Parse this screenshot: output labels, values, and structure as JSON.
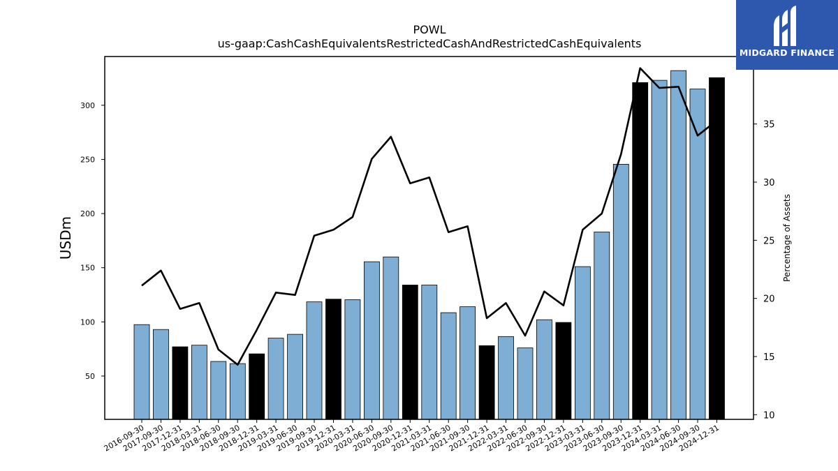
{
  "chart_data": {
    "type": "bar",
    "title": "POWL",
    "subtitle": "us-gaap:CashCashEquivalentsRestrictedCashAndRestrictedCashEquivalents",
    "xlabel": "",
    "ylabel": "USDm",
    "y2label": "Percentage of Assets",
    "ylim": [
      10,
      345
    ],
    "y2lim": [
      9.6,
      40.8
    ],
    "yticks": [
      50,
      100,
      150,
      200,
      250,
      300
    ],
    "y2ticks": [
      10,
      15,
      20,
      25,
      30,
      35,
      40
    ],
    "categories": [
      "2016-09-30",
      "2017-09-30",
      "2017-12-31",
      "2018-03-31",
      "2018-06-30",
      "2018-09-30",
      "2018-12-31",
      "2019-03-31",
      "2019-06-30",
      "2019-09-30",
      "2019-12-31",
      "2020-03-31",
      "2020-06-30",
      "2020-09-30",
      "2020-12-31",
      "2021-03-31",
      "2021-06-30",
      "2021-09-30",
      "2021-12-31",
      "2022-03-31",
      "2022-06-30",
      "2022-09-30",
      "2022-12-31",
      "2023-03-31",
      "2023-06-30",
      "2023-09-30",
      "2023-12-31",
      "2024-03-31",
      "2024-06-30",
      "2024-09-30",
      "2024-12-31"
    ],
    "series": [
      {
        "kind": "bar",
        "values": [
          97.5,
          93,
          77,
          78.5,
          63.5,
          61.5,
          70.5,
          85,
          88.5,
          118.5,
          121,
          120.5,
          155.5,
          160,
          134,
          134,
          108.5,
          114,
          78,
          86.5,
          76,
          102,
          99.5,
          151,
          183,
          245.5,
          321,
          323,
          332,
          315,
          325.5
        ],
        "highlight": [
          false,
          false,
          true,
          false,
          false,
          false,
          true,
          false,
          false,
          false,
          true,
          false,
          false,
          false,
          true,
          false,
          false,
          false,
          true,
          false,
          false,
          false,
          true,
          false,
          false,
          false,
          true,
          false,
          false,
          false,
          true
        ]
      },
      {
        "kind": "line",
        "axis": "right",
        "values": [
          21.1,
          22.4,
          19.1,
          19.6,
          15.6,
          14.3,
          17.3,
          20.5,
          20.3,
          25.4,
          25.9,
          27.0,
          32.0,
          33.9,
          29.9,
          30.4,
          25.7,
          26.2,
          18.3,
          19.6,
          16.8,
          20.6,
          19.4,
          25.9,
          27.3,
          32.4,
          39.8,
          38.1,
          38.2,
          34.0,
          35.3
        ]
      }
    ],
    "colors": {
      "bar": "#7eaed3",
      "bar_highlight": "#000000",
      "line": "#000000"
    },
    "grid": false,
    "legend": "none"
  },
  "branding": {
    "logo_text": "MIDGARD FINANCE"
  }
}
